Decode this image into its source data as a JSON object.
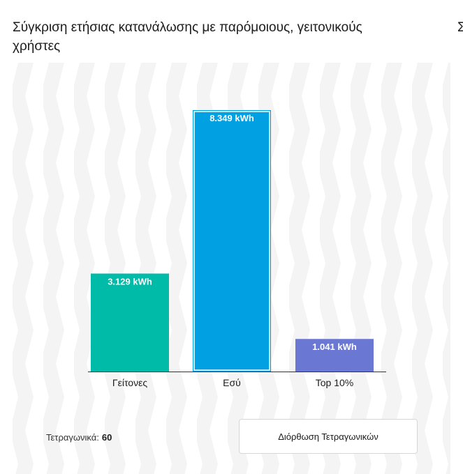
{
  "card": {
    "title": "Σύγκριση ετήσιας κατανάλωσης με παρόμοιους, γειτονικούς χρήστες",
    "next_card_title_glyph": "Σ"
  },
  "footer": {
    "sqm_label": "Τετραγωνικά:",
    "sqm_value": "60",
    "fix_button_label": "Διόρθωση Τετραγωνικών"
  },
  "colors": {
    "neighbors": "#00bba7",
    "you": "#00a0e2",
    "top10": "#6a78d4",
    "pattern_stripe": "#f4f4f4",
    "axis": "#333333"
  },
  "chart_data": {
    "type": "bar",
    "categories": [
      "Γείτονες",
      "Εσύ",
      "Top 10%"
    ],
    "values": [
      3129,
      8349,
      1041
    ],
    "value_labels": [
      "3.129 kWh",
      "8.349 kWh",
      "1.041 kWh"
    ],
    "unit": "kWh",
    "ylim": [
      0,
      8349
    ],
    "grid": false,
    "highlighted_category": "Εσύ"
  }
}
